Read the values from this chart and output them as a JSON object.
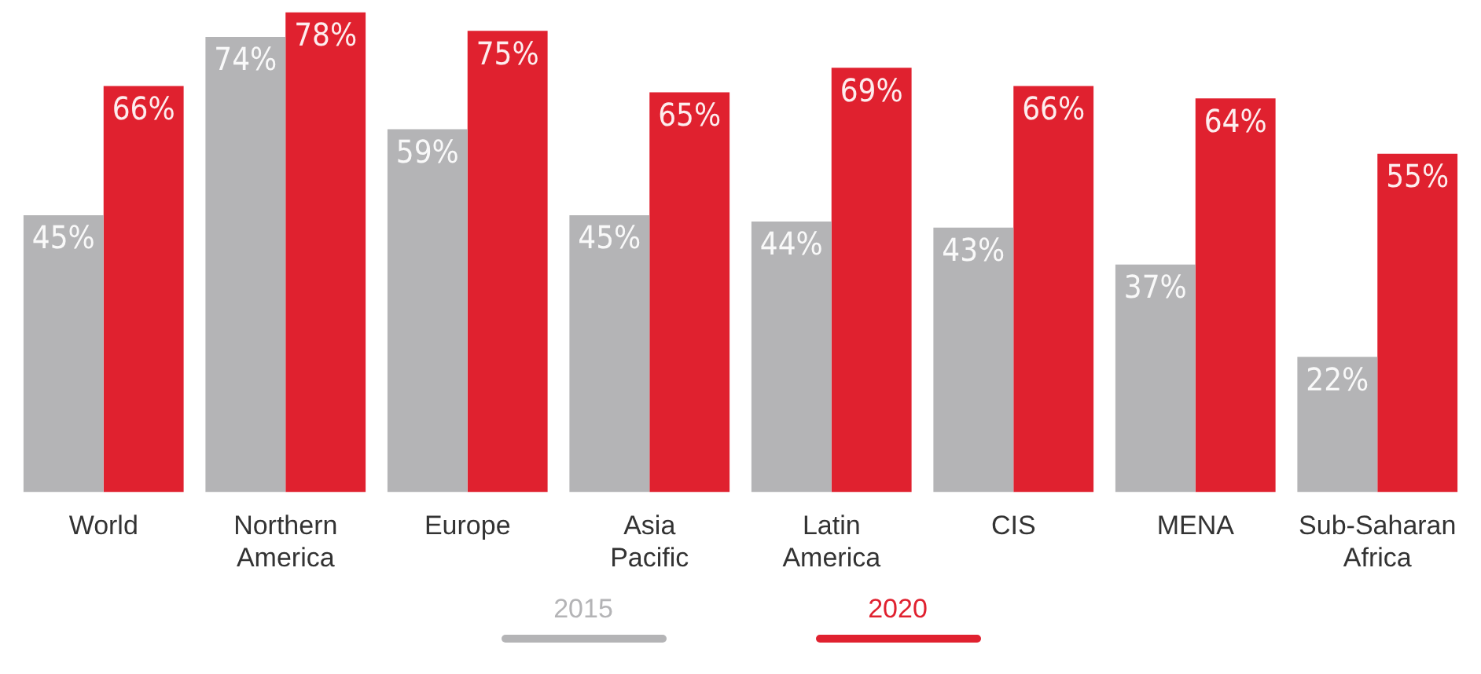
{
  "chart_data": {
    "type": "bar",
    "categories": [
      "World",
      "Northern America",
      "Europe",
      "Asia Pacific",
      "Latin America",
      "CIS",
      "MENA",
      "Sub-Saharan Africa"
    ],
    "series": [
      {
        "name": "2015",
        "color": "#b4b4b6",
        "values": [
          45,
          74,
          59,
          45,
          44,
          43,
          37,
          22
        ],
        "value_labels": [
          "45%",
          "74%",
          "59%",
          "45%",
          "44%",
          "43%",
          "37%",
          "22%"
        ]
      },
      {
        "name": "2020",
        "color": "#e0212f",
        "values": [
          66,
          78,
          75,
          65,
          69,
          66,
          64,
          55
        ],
        "value_labels": [
          "66%",
          "78%",
          "75%",
          "65%",
          "69%",
          "66%",
          "64%",
          "55%"
        ]
      }
    ],
    "tick_labels": "x",
    "grid": false,
    "legend": "bottom"
  }
}
